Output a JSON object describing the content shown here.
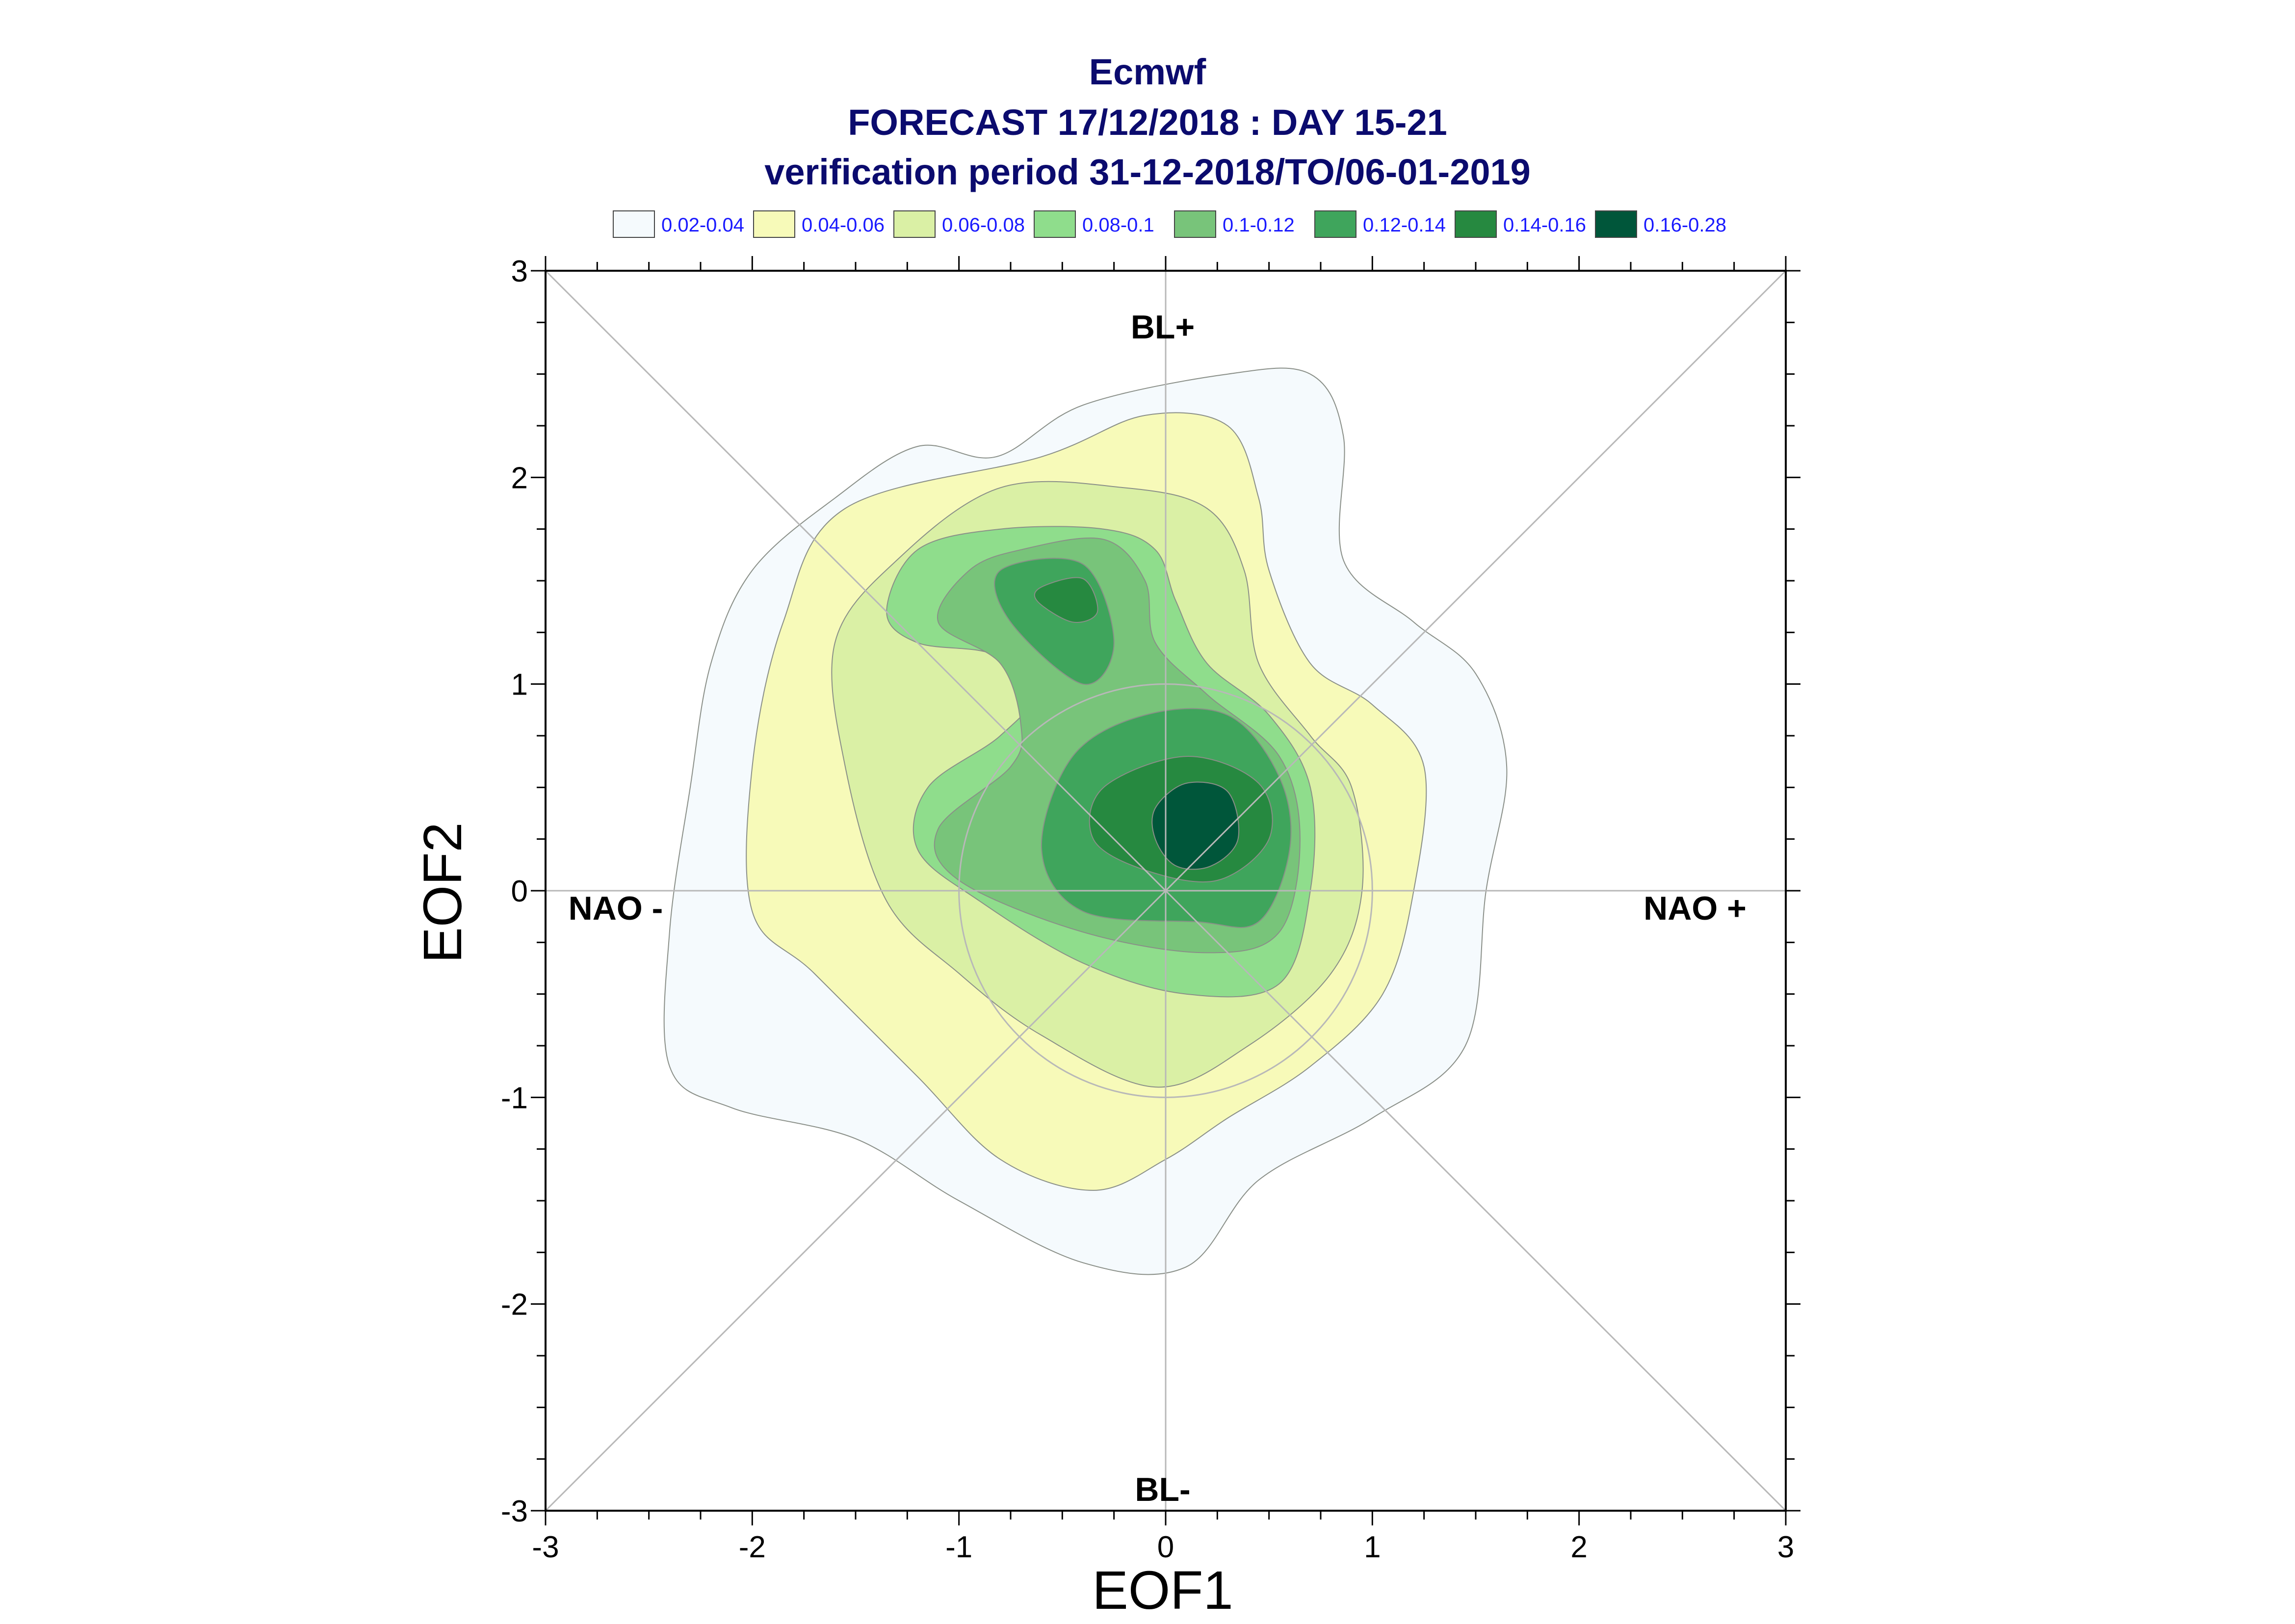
{
  "header": {
    "title": "Ecmwf",
    "subtitle": "FORECAST 17/12/2018 : DAY 15-21",
    "period": "verification period 31-12-2018/TO/06-01-2019"
  },
  "chart_data": {
    "type": "contour-density",
    "xlabel": "EOF1",
    "ylabel": "EOF2",
    "xlim": [
      -3,
      3
    ],
    "ylim": [
      -3,
      3
    ],
    "xticks": [
      "-3",
      "-2",
      "-1",
      "0",
      "1",
      "2",
      "3"
    ],
    "yticks": [
      "-3",
      "-2",
      "-1",
      "0",
      "1",
      "2",
      "3"
    ],
    "regimes": [
      "BL+",
      "BL-",
      "NAO -",
      "NAO +"
    ],
    "legend": [
      {
        "label": "0.02-0.04",
        "color": "#f5fafd"
      },
      {
        "label": "0.04-0.06",
        "color": "#f7fab9"
      },
      {
        "label": "0.06-0.08",
        "color": "#daf0a5"
      },
      {
        "label": "0.08-0.1",
        "color": "#8fdd8c"
      },
      {
        "label": "0.1-0.12",
        "color": "#78c47a"
      },
      {
        "label": "0.12-0.14",
        "color": "#3fa55c"
      },
      {
        "label": "0.14-0.16",
        "color": "#268940"
      },
      {
        "label": "0.16-0.28",
        "color": "#00563a"
      }
    ],
    "contours": [
      {
        "level": "0.02-0.04",
        "points": [
          [
            -0.82,
            2.1
          ],
          [
            -0.4,
            2.35
          ],
          [
            0.3,
            2.5
          ],
          [
            0.7,
            2.5
          ],
          [
            0.86,
            2.2
          ],
          [
            0.86,
            1.6
          ],
          [
            1.2,
            1.3
          ],
          [
            1.5,
            1.05
          ],
          [
            1.65,
            0.6
          ],
          [
            1.55,
            0.0
          ],
          [
            1.45,
            -0.75
          ],
          [
            1.0,
            -1.1
          ],
          [
            0.45,
            -1.4
          ],
          [
            0.1,
            -1.82
          ],
          [
            -0.4,
            -1.8
          ],
          [
            -1.0,
            -1.5
          ],
          [
            -1.5,
            -1.2
          ],
          [
            -2.1,
            -1.05
          ],
          [
            -2.4,
            -0.85
          ],
          [
            -2.4,
            -0.2
          ],
          [
            -2.3,
            0.5
          ],
          [
            -2.2,
            1.1
          ],
          [
            -2.0,
            1.55
          ],
          [
            -1.6,
            1.9
          ],
          [
            -1.2,
            2.15
          ]
        ]
      },
      {
        "level": "0.04-0.06",
        "points": [
          [
            -0.6,
            2.1
          ],
          [
            -0.1,
            2.3
          ],
          [
            0.3,
            2.25
          ],
          [
            0.45,
            1.9
          ],
          [
            0.5,
            1.55
          ],
          [
            0.7,
            1.1
          ],
          [
            1.0,
            0.9
          ],
          [
            1.25,
            0.6
          ],
          [
            1.2,
            0.0
          ],
          [
            1.05,
            -0.5
          ],
          [
            0.7,
            -0.85
          ],
          [
            0.3,
            -1.1
          ],
          [
            0.0,
            -1.3
          ],
          [
            -0.35,
            -1.45
          ],
          [
            -0.8,
            -1.3
          ],
          [
            -1.2,
            -0.9
          ],
          [
            -1.7,
            -0.4
          ],
          [
            -2.0,
            -0.1
          ],
          [
            -2.0,
            0.6
          ],
          [
            -1.85,
            1.3
          ],
          [
            -1.55,
            1.85
          ]
        ]
      },
      {
        "level": "0.06-0.08",
        "points": [
          [
            -1.3,
            1.6
          ],
          [
            -0.8,
            1.95
          ],
          [
            -0.2,
            1.95
          ],
          [
            0.2,
            1.85
          ],
          [
            0.38,
            1.55
          ],
          [
            0.45,
            1.1
          ],
          [
            0.7,
            0.75
          ],
          [
            0.9,
            0.5
          ],
          [
            0.95,
            0.0
          ],
          [
            0.8,
            -0.4
          ],
          [
            0.4,
            -0.75
          ],
          [
            -0.05,
            -0.95
          ],
          [
            -0.6,
            -0.7
          ],
          [
            -1.0,
            -0.4
          ],
          [
            -1.35,
            -0.05
          ],
          [
            -1.55,
            0.6
          ],
          [
            -1.6,
            1.2
          ]
        ]
      },
      {
        "level": "0.08-0.1",
        "points": [
          [
            -1.35,
            1.35
          ],
          [
            -1.2,
            1.65
          ],
          [
            -0.8,
            1.75
          ],
          [
            -0.3,
            1.75
          ],
          [
            -0.05,
            1.65
          ],
          [
            0.05,
            1.4
          ],
          [
            0.2,
            1.1
          ],
          [
            0.5,
            0.85
          ],
          [
            0.7,
            0.5
          ],
          [
            0.7,
            0.0
          ],
          [
            0.55,
            -0.45
          ],
          [
            0.1,
            -0.5
          ],
          [
            -0.4,
            -0.35
          ],
          [
            -0.9,
            -0.05
          ],
          [
            -1.2,
            0.2
          ],
          [
            -1.15,
            0.5
          ],
          [
            -0.8,
            0.75
          ],
          [
            -0.6,
            1.0
          ],
          [
            -0.85,
            1.15
          ],
          [
            -1.2,
            1.2
          ]
        ]
      },
      {
        "level": "0.1-0.12",
        "points": [
          [
            -0.7,
            1.65
          ],
          [
            -0.3,
            1.7
          ],
          [
            -0.1,
            1.5
          ],
          [
            -0.05,
            1.2
          ],
          [
            0.2,
            0.95
          ],
          [
            0.55,
            0.65
          ],
          [
            0.65,
            0.25
          ],
          [
            0.55,
            -0.2
          ],
          [
            0.2,
            -0.3
          ],
          [
            -0.4,
            -0.2
          ],
          [
            -1.0,
            0.05
          ],
          [
            -1.1,
            0.3
          ],
          [
            -0.75,
            0.6
          ],
          [
            -0.7,
            0.8
          ],
          [
            -0.8,
            1.1
          ],
          [
            -1.1,
            1.3
          ],
          [
            -0.95,
            1.55
          ]
        ]
      },
      {
        "level": "0.12-0.14",
        "points": [
          [
            -0.8,
            1.55
          ],
          [
            -0.4,
            1.58
          ],
          [
            -0.25,
            1.2
          ],
          [
            -0.4,
            1.0
          ],
          [
            -0.75,
            1.3
          ]
        ]
      },
      {
        "level": "0.12-0.14",
        "points": [
          [
            -0.45,
            0.65
          ],
          [
            -0.1,
            0.85
          ],
          [
            0.3,
            0.85
          ],
          [
            0.55,
            0.55
          ],
          [
            0.6,
            0.2
          ],
          [
            0.45,
            -0.15
          ],
          [
            0.15,
            -0.15
          ],
          [
            -0.4,
            -0.1
          ],
          [
            -0.6,
            0.2
          ]
        ]
      },
      {
        "level": "0.14-0.16",
        "points": [
          [
            -0.6,
            1.47
          ],
          [
            -0.4,
            1.51
          ],
          [
            -0.33,
            1.35
          ],
          [
            -0.45,
            1.3
          ],
          [
            -0.62,
            1.4
          ]
        ]
      },
      {
        "level": "0.14-0.16",
        "points": [
          [
            -0.3,
            0.5
          ],
          [
            0.1,
            0.65
          ],
          [
            0.45,
            0.52
          ],
          [
            0.5,
            0.25
          ],
          [
            0.25,
            0.05
          ],
          [
            -0.1,
            0.1
          ],
          [
            -0.35,
            0.25
          ]
        ]
      },
      {
        "level": "0.16-0.28",
        "points": [
          [
            -0.05,
            0.4
          ],
          [
            0.1,
            0.52
          ],
          [
            0.3,
            0.48
          ],
          [
            0.35,
            0.25
          ],
          [
            0.22,
            0.12
          ],
          [
            0.05,
            0.12
          ],
          [
            -0.05,
            0.25
          ]
        ]
      }
    ]
  }
}
